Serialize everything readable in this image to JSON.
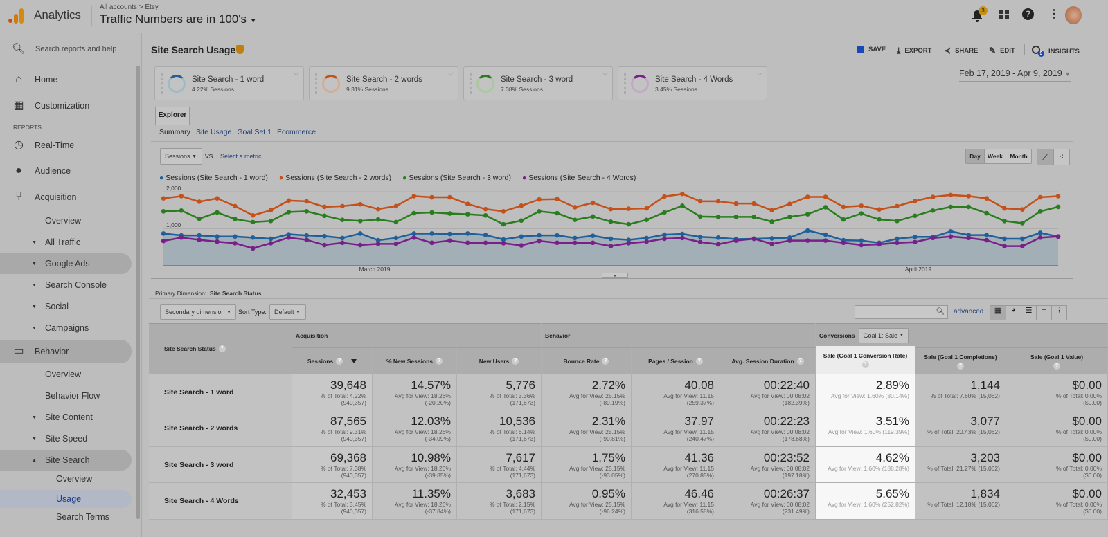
{
  "header": {
    "app": "Analytics",
    "breadcrumb": "All accounts > Etsy",
    "property": "Traffic Numbers are in 100's",
    "notif_count": "3",
    "insights_count": "9"
  },
  "sidebar": {
    "search_placeholder": "Search reports and help",
    "reports_label": "REPORTS",
    "items": [
      {
        "label": "Home"
      },
      {
        "label": "Customization"
      },
      {
        "label": "Real-Time"
      },
      {
        "label": "Audience"
      },
      {
        "label": "Acquisition"
      },
      {
        "label": "Overview"
      },
      {
        "label": "All Traffic"
      },
      {
        "label": "Google Ads"
      },
      {
        "label": "Search Console"
      },
      {
        "label": "Social"
      },
      {
        "label": "Campaigns"
      },
      {
        "label": "Behavior"
      },
      {
        "label": "Overview"
      },
      {
        "label": "Behavior Flow"
      },
      {
        "label": "Site Content"
      },
      {
        "label": "Site Speed"
      },
      {
        "label": "Site Search"
      },
      {
        "label": "Overview"
      },
      {
        "label": "Usage"
      },
      {
        "label": "Search Terms"
      }
    ]
  },
  "page": {
    "title": "Site Search Usage",
    "save": "SAVE",
    "export": "EXPORT",
    "share": "SHARE",
    "edit": "EDIT",
    "insights": "INSIGHTS",
    "date_range": "Feb 17, 2019 - Apr 9, 2019"
  },
  "segments": [
    {
      "name": "Site Search - 1 word",
      "sub": "4.22% Sessions",
      "color": "#1f5f9a"
    },
    {
      "name": "Site Search - 2 words",
      "sub": "9.31% Sessions",
      "color": "#c4501a"
    },
    {
      "name": "Site Search - 3 word",
      "sub": "7.38% Sessions",
      "color": "#2a7d1e"
    },
    {
      "name": "Site Search - 4 Words",
      "sub": "3.45% Sessions",
      "color": "#7a1f8a"
    }
  ],
  "explorer": {
    "tab": "Explorer",
    "subtabs": [
      "Summary",
      "Site Usage",
      "Goal Set 1",
      "Ecommerce"
    ],
    "metric": "Sessions",
    "vs": "VS.",
    "select_metric": "Select a metric",
    "periods": [
      "Day",
      "Week",
      "Month"
    ]
  },
  "chart_data": {
    "type": "line",
    "yticks": [
      "2,000",
      "1,000"
    ],
    "ylim": [
      0,
      2000
    ],
    "xlabels": [
      "March 2019",
      "April 2019"
    ],
    "x_start": "Feb 17, 2019",
    "x_end": "Apr 9, 2019",
    "series": [
      {
        "name": "Sessions (Site Search - 1 word)",
        "color": "#1f5f9a",
        "values": [
          870,
          820,
          820,
          790,
          790,
          760,
          730,
          850,
          820,
          800,
          750,
          870,
          690,
          750,
          870,
          870,
          860,
          870,
          830,
          710,
          790,
          820,
          820,
          750,
          810,
          730,
          700,
          750,
          840,
          860,
          780,
          760,
          720,
          730,
          740,
          760,
          950,
          840,
          690,
          680,
          620,
          730,
          780,
          780,
          930,
          830,
          830,
          730,
          730,
          890,
          790
        ]
      },
      {
        "name": "Sessions (Site Search - 2 words)",
        "color": "#c4501a",
        "values": [
          1820,
          1880,
          1730,
          1820,
          1610,
          1360,
          1500,
          1760,
          1740,
          1590,
          1610,
          1660,
          1530,
          1610,
          1880,
          1850,
          1850,
          1670,
          1530,
          1470,
          1620,
          1790,
          1800,
          1580,
          1700,
          1530,
          1540,
          1550,
          1870,
          1940,
          1740,
          1740,
          1680,
          1680,
          1500,
          1670,
          1860,
          1860,
          1590,
          1620,
          1520,
          1610,
          1750,
          1860,
          1910,
          1880,
          1820,
          1550,
          1520,
          1850,
          1880
        ]
      },
      {
        "name": "Sessions (Site Search - 3 word)",
        "color": "#2a7d1e",
        "values": [
          1470,
          1490,
          1270,
          1440,
          1260,
          1180,
          1210,
          1450,
          1470,
          1350,
          1240,
          1210,
          1250,
          1180,
          1420,
          1440,
          1410,
          1390,
          1360,
          1120,
          1220,
          1470,
          1420,
          1240,
          1330,
          1190,
          1120,
          1240,
          1440,
          1620,
          1330,
          1320,
          1320,
          1320,
          1190,
          1320,
          1390,
          1580,
          1250,
          1410,
          1250,
          1210,
          1350,
          1490,
          1590,
          1590,
          1420,
          1210,
          1150,
          1470,
          1590
        ]
      },
      {
        "name": "Sessions (Site Search - 4 Words)",
        "color": "#7a1f8a",
        "values": [
          670,
          760,
          700,
          650,
          610,
          470,
          610,
          760,
          700,
          560,
          620,
          560,
          590,
          590,
          760,
          620,
          680,
          620,
          620,
          610,
          550,
          670,
          620,
          620,
          620,
          530,
          610,
          650,
          730,
          750,
          640,
          580,
          680,
          730,
          590,
          680,
          680,
          680,
          620,
          560,
          580,
          620,
          640,
          750,
          790,
          750,
          690,
          530,
          530,
          760,
          790
        ]
      }
    ]
  },
  "table_controls": {
    "primary_label": "Primary Dimension:",
    "primary_value": "Site Search Status",
    "secondary": "Secondary dimension",
    "sort_label": "Sort Type:",
    "sort_value": "Default",
    "advanced": "advanced",
    "conversions_label": "Conversions",
    "goal": "Goal 1: Sale"
  },
  "table": {
    "dim_header": "Site Search Status",
    "groups": [
      "Acquisition",
      "Behavior"
    ],
    "columns": [
      "Sessions",
      "% New Sessions",
      "New Users",
      "Bounce Rate",
      "Pages / Session",
      "Avg. Session Duration",
      "Sale (Goal 1 Conversion Rate)",
      "Sale (Goal 1 Completions)",
      "Sale (Goal 1 Value)"
    ],
    "rows": [
      {
        "name": "Site Search - 1 word",
        "cells": [
          [
            "39,648",
            "% of Total: 4.22%",
            "(940,357)"
          ],
          [
            "14.57%",
            "Avg for View: 18.26%",
            "(-20.20%)"
          ],
          [
            "5,776",
            "% of Total: 3.36%",
            "(171,673)"
          ],
          [
            "2.72%",
            "Avg for View: 25.15%",
            "(-89.19%)"
          ],
          [
            "40.08",
            "Avg for View: 11.15",
            "(259.37%)"
          ],
          [
            "00:22:40",
            "Avg for View: 00:08:02",
            "(182.39%)"
          ],
          [
            "2.89%",
            "Avg for View: 1.60% (80.14%)",
            ""
          ],
          [
            "1,144",
            "% of Total: 7.60% (15,062)",
            ""
          ],
          [
            "$0.00",
            "% of Total: 0.00%",
            "($0.00)"
          ]
        ]
      },
      {
        "name": "Site Search - 2 words",
        "cells": [
          [
            "87,565",
            "% of Total: 9.31%",
            "(940,357)"
          ],
          [
            "12.03%",
            "Avg for View: 18.26%",
            "(-34.09%)"
          ],
          [
            "10,536",
            "% of Total: 6.14%",
            "(171,673)"
          ],
          [
            "2.31%",
            "Avg for View: 25.15%",
            "(-90.81%)"
          ],
          [
            "37.97",
            "Avg for View: 11.15",
            "(240.47%)"
          ],
          [
            "00:22:23",
            "Avg for View: 00:08:02",
            "(178.68%)"
          ],
          [
            "3.51%",
            "Avg for View: 1.60% (119.39%)",
            ""
          ],
          [
            "3,077",
            "% of Total: 20.43% (15,062)",
            ""
          ],
          [
            "$0.00",
            "% of Total: 0.00%",
            "($0.00)"
          ]
        ]
      },
      {
        "name": "Site Search - 3 word",
        "cells": [
          [
            "69,368",
            "% of Total: 7.38%",
            "(940,357)"
          ],
          [
            "10.98%",
            "Avg for View: 18.26%",
            "(-39.85%)"
          ],
          [
            "7,617",
            "% of Total: 4.44%",
            "(171,673)"
          ],
          [
            "1.75%",
            "Avg for View: 25.15%",
            "(-93.05%)"
          ],
          [
            "41.36",
            "Avg for View: 11.15",
            "(270.85%)"
          ],
          [
            "00:23:52",
            "Avg for View: 00:08:02",
            "(197.18%)"
          ],
          [
            "4.62%",
            "Avg for View: 1.60% (188.28%)",
            ""
          ],
          [
            "3,203",
            "% of Total: 21.27% (15,062)",
            ""
          ],
          [
            "$0.00",
            "% of Total: 0.00%",
            "($0.00)"
          ]
        ]
      },
      {
        "name": "Site Search - 4 Words",
        "cells": [
          [
            "32,453",
            "% of Total: 3.45%",
            "(940,357)"
          ],
          [
            "11.35%",
            "Avg for View: 18.26%",
            "(-37.84%)"
          ],
          [
            "3,683",
            "% of Total: 2.15%",
            "(171,673)"
          ],
          [
            "0.95%",
            "Avg for View: 25.15%",
            "(-96.24%)"
          ],
          [
            "46.46",
            "Avg for View: 11.15",
            "(316.58%)"
          ],
          [
            "00:26:37",
            "Avg for View: 00:08:02",
            "(231.49%)"
          ],
          [
            "5.65%",
            "Avg for View: 1.60% (252.82%)",
            ""
          ],
          [
            "1,834",
            "% of Total: 12.18% (15,062)",
            ""
          ],
          [
            "$0.00",
            "% of Total: 0.00%",
            "($0.00)"
          ]
        ]
      }
    ]
  }
}
